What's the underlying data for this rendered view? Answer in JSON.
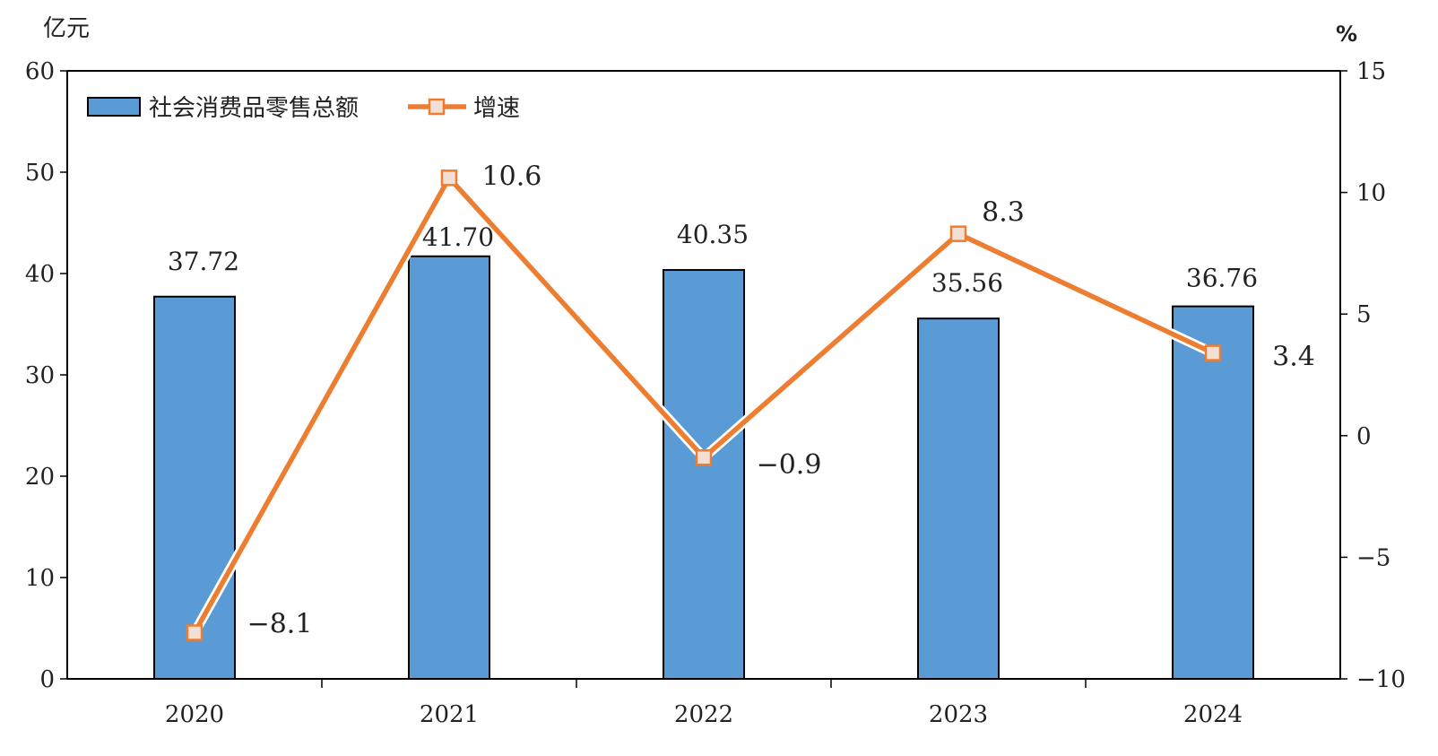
{
  "chart_data": {
    "type": "bar",
    "categories": [
      "2020",
      "2021",
      "2022",
      "2023",
      "2024"
    ],
    "y_left_unit": "亿元",
    "y_right_unit": "%",
    "y_left_ticks": [
      "0",
      "10",
      "20",
      "30",
      "40",
      "50",
      "60"
    ],
    "y_right_ticks": [
      "−10",
      "−5",
      "0",
      "5",
      "10",
      "15"
    ],
    "ylim_left": [
      0,
      60
    ],
    "ylim_right": [
      -10,
      15
    ],
    "series": [
      {
        "name": "社会消费品零售总额",
        "type": "bar",
        "axis": "left",
        "values": [
          37.72,
          41.7,
          40.35,
          35.56,
          36.76
        ],
        "labels": [
          "37.72",
          "41.70",
          "40.35",
          "35.56",
          "36.76"
        ]
      },
      {
        "name": "增速",
        "type": "line",
        "axis": "right",
        "values": [
          -8.1,
          10.6,
          -0.9,
          8.3,
          3.4
        ],
        "labels": [
          "−8.1",
          "10.6",
          "−0.9",
          "8.3",
          "3.4"
        ]
      }
    ],
    "legend_position": "top-left",
    "grid": false,
    "colors": {
      "bar": "#5b9bd5",
      "line": "#ed7d31",
      "marker_fill": "#f2e0d4"
    }
  }
}
